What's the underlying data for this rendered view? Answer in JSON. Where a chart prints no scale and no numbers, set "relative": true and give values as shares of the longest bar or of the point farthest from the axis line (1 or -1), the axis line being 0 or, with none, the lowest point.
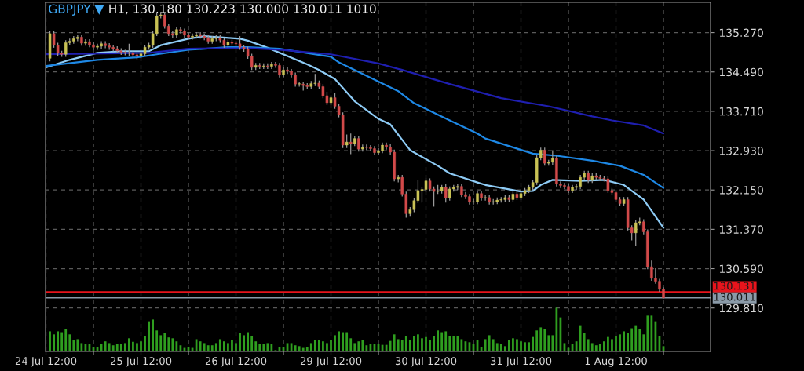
{
  "chart_data": [
    {
      "type": "candlestick",
      "title": "GBPJPY ▼",
      "subtitle": "H1, 130.180 130.223 130.000 130.011 1010",
      "categories": [
        "24 Jul 12:00",
        null,
        null,
        null,
        null,
        null,
        null,
        null,
        null,
        null,
        null,
        null,
        null,
        null,
        null,
        null,
        null,
        null,
        null,
        null,
        null,
        null,
        null,
        null,
        "25 Jul 12:00",
        null,
        null,
        null,
        null,
        null,
        null,
        null,
        null,
        null,
        null,
        null,
        null,
        null,
        null,
        null,
        null,
        null,
        null,
        null,
        null,
        null,
        null,
        null,
        "26 Jul 12:00",
        null,
        null,
        null,
        null,
        null,
        null,
        null,
        null,
        null,
        null,
        null,
        null,
        null,
        null,
        null,
        null,
        null,
        null,
        null,
        null,
        null,
        null,
        null,
        "29 Jul 12:00",
        null,
        null,
        null,
        null,
        null,
        null,
        null,
        null,
        null,
        null,
        null,
        null,
        null,
        null,
        null,
        null,
        null,
        null,
        null,
        null,
        null,
        null,
        null,
        "30 Jul 12:00",
        null,
        null,
        null,
        null,
        null,
        null,
        null,
        null,
        null,
        null,
        null,
        null,
        null,
        null,
        null,
        null,
        null,
        null,
        null,
        null,
        null,
        null,
        null,
        "31 Jul 12:00",
        null,
        null,
        null,
        null,
        null,
        null,
        null,
        null,
        null,
        null,
        null,
        null,
        null,
        null,
        null,
        null,
        null,
        null,
        null,
        null,
        null,
        null,
        null,
        "1 Aug 12:00",
        null,
        null,
        null,
        null,
        null,
        null,
        null,
        null,
        null,
        null,
        null,
        null
      ],
      "ohlc": [
        null,
        [
          134.76,
          135.3,
          134.7,
          135.25
        ],
        [
          135.25,
          135.3,
          134.97,
          135.02
        ],
        [
          135.02,
          135.07,
          134.81,
          134.86
        ],
        [
          134.86,
          134.91,
          134.79,
          134.84
        ],
        [
          134.84,
          135.12,
          134.79,
          135.07
        ],
        [
          135.07,
          135.15,
          135.02,
          135.1
        ],
        [
          135.1,
          135.2,
          135.05,
          135.15
        ],
        [
          135.15,
          135.23,
          135.1,
          135.18
        ],
        [
          135.18,
          135.23,
          135.01,
          135.06
        ],
        [
          135.06,
          135.14,
          135.01,
          135.09
        ],
        [
          135.09,
          135.14,
          134.98,
          135.03
        ],
        [
          135.03,
          135.08,
          134.93,
          134.98
        ],
        [
          134.98,
          135.05,
          134.93,
          135.0
        ],
        [
          135.0,
          135.1,
          134.95,
          135.05
        ],
        [
          135.05,
          135.1,
          134.96,
          135.01
        ],
        [
          135.01,
          135.06,
          134.93,
          134.98
        ],
        [
          134.98,
          135.03,
          134.9,
          134.95
        ],
        [
          134.95,
          135.0,
          134.86,
          134.91
        ],
        [
          134.91,
          134.96,
          134.83,
          134.88
        ],
        [
          134.88,
          134.93,
          134.82,
          134.87
        ],
        [
          134.87,
          135.05,
          134.81,
          134.86
        ],
        [
          134.86,
          134.91,
          134.78,
          134.83
        ],
        [
          134.83,
          134.88,
          134.74,
          134.81
        ],
        [
          134.81,
          134.9,
          134.76,
          134.85
        ],
        [
          134.85,
          135.03,
          134.8,
          134.98
        ],
        [
          134.98,
          135.07,
          134.93,
          135.02
        ],
        [
          135.02,
          135.3,
          134.97,
          135.25
        ],
        [
          135.25,
          135.66,
          135.2,
          135.6
        ],
        [
          135.6,
          135.68,
          135.55,
          135.62
        ],
        [
          135.62,
          135.67,
          135.35,
          135.4
        ],
        [
          135.4,
          135.45,
          135.2,
          135.25
        ],
        [
          135.25,
          135.3,
          135.17,
          135.22
        ],
        [
          135.22,
          135.38,
          135.17,
          135.33
        ],
        [
          135.33,
          135.38,
          135.25,
          135.3
        ],
        [
          135.3,
          135.35,
          135.17,
          135.22
        ],
        [
          135.22,
          135.27,
          135.13,
          135.18
        ],
        [
          135.18,
          135.25,
          135.13,
          135.2
        ],
        [
          135.2,
          135.28,
          135.15,
          135.23
        ],
        [
          135.23,
          135.28,
          135.15,
          135.2
        ],
        [
          135.2,
          135.25,
          135.12,
          135.17
        ],
        [
          135.17,
          135.22,
          135.05,
          135.1
        ],
        [
          135.1,
          135.2,
          135.05,
          135.15
        ],
        [
          135.15,
          135.22,
          135.1,
          135.17
        ],
        [
          135.17,
          135.22,
          135.07,
          135.12
        ],
        [
          135.12,
          135.17,
          134.97,
          135.02
        ],
        [
          135.02,
          135.13,
          134.97,
          135.08
        ],
        [
          135.08,
          135.13,
          135.01,
          135.06
        ],
        [
          135.06,
          135.11,
          135.0,
          135.05
        ],
        [
          135.05,
          135.2,
          134.93,
          134.98
        ],
        [
          134.98,
          135.03,
          134.89,
          134.94
        ],
        [
          134.94,
          134.99,
          134.75,
          134.8
        ],
        [
          134.8,
          134.85,
          134.53,
          134.58
        ],
        [
          134.58,
          134.67,
          134.53,
          134.62
        ],
        [
          134.62,
          134.67,
          134.55,
          134.6
        ],
        [
          134.6,
          134.66,
          134.55,
          134.61
        ],
        [
          134.61,
          134.66,
          134.55,
          134.6
        ],
        [
          134.6,
          134.69,
          134.55,
          134.64
        ],
        [
          134.64,
          134.69,
          134.57,
          134.62
        ],
        [
          134.62,
          134.67,
          134.38,
          134.43
        ],
        [
          134.43,
          134.58,
          134.38,
          134.53
        ],
        [
          134.53,
          134.58,
          134.45,
          134.5
        ],
        [
          134.5,
          134.55,
          134.38,
          134.43
        ],
        [
          134.43,
          134.48,
          134.2,
          134.25
        ],
        [
          134.25,
          134.3,
          134.2,
          134.25
        ],
        [
          134.25,
          134.3,
          134.12,
          134.22
        ],
        [
          134.22,
          134.27,
          134.15,
          134.2
        ],
        [
          134.2,
          134.31,
          134.15,
          134.26
        ],
        [
          134.26,
          134.45,
          134.21,
          134.27
        ],
        [
          134.27,
          134.32,
          134.15,
          134.2
        ],
        [
          134.2,
          134.25,
          133.97,
          134.02
        ],
        [
          134.02,
          134.1,
          133.83,
          133.88
        ],
        [
          133.88,
          134.03,
          133.83,
          133.98
        ],
        [
          133.98,
          134.08,
          133.76,
          133.81
        ],
        [
          133.81,
          133.86,
          133.59,
          133.64
        ],
        [
          133.64,
          133.69,
          132.98,
          133.04
        ],
        [
          133.04,
          133.25,
          132.98,
          133.1
        ],
        [
          133.1,
          133.27,
          132.86,
          133.07
        ],
        [
          133.07,
          133.22,
          133.02,
          133.17
        ],
        [
          133.17,
          133.22,
          132.91,
          132.96
        ],
        [
          132.96,
          133.05,
          132.91,
          133.0
        ],
        [
          133.0,
          133.05,
          132.94,
          132.99
        ],
        [
          132.99,
          133.04,
          132.92,
          132.97
        ],
        [
          132.97,
          133.02,
          132.84,
          132.89
        ],
        [
          132.89,
          132.98,
          132.84,
          132.93
        ],
        [
          132.93,
          133.09,
          132.88,
          133.04
        ],
        [
          133.04,
          133.09,
          132.95,
          133.0
        ],
        [
          133.0,
          133.07,
          132.85,
          132.9
        ],
        [
          132.9,
          132.95,
          132.32,
          132.37
        ],
        [
          132.37,
          132.45,
          132.3,
          132.4
        ],
        [
          132.4,
          132.45,
          132.02,
          132.07
        ],
        [
          132.07,
          132.12,
          131.6,
          131.68
        ],
        [
          131.68,
          131.81,
          131.62,
          131.76
        ],
        [
          131.76,
          131.99,
          131.71,
          131.94
        ],
        [
          131.94,
          132.35,
          131.89,
          132.14
        ],
        [
          132.14,
          132.21,
          131.9,
          132.16
        ],
        [
          132.16,
          132.38,
          132.11,
          132.33
        ],
        [
          132.33,
          132.38,
          132.12,
          132.17
        ],
        [
          132.17,
          132.22,
          131.82,
          132.12
        ],
        [
          132.12,
          132.25,
          132.07,
          132.13
        ],
        [
          132.13,
          132.25,
          132.08,
          132.2
        ],
        [
          132.2,
          132.27,
          131.9,
          131.99
        ],
        [
          131.99,
          132.22,
          131.94,
          132.17
        ],
        [
          132.17,
          132.25,
          132.12,
          132.2
        ],
        [
          132.2,
          132.27,
          132.15,
          132.22
        ],
        [
          132.22,
          132.27,
          132.01,
          132.06
        ],
        [
          132.06,
          132.11,
          131.97,
          132.02
        ],
        [
          132.02,
          132.07,
          131.86,
          131.91
        ],
        [
          131.91,
          131.97,
          131.86,
          131.92
        ],
        [
          131.92,
          132.13,
          131.87,
          132.08
        ],
        [
          132.08,
          132.13,
          131.94,
          131.99
        ],
        [
          131.99,
          132.05,
          131.94,
          132.0
        ],
        [
          132.0,
          132.05,
          131.86,
          131.91
        ],
        [
          131.91,
          131.97,
          131.86,
          131.92
        ],
        [
          131.92,
          132.0,
          131.87,
          131.95
        ],
        [
          131.95,
          132.01,
          131.9,
          131.96
        ],
        [
          131.96,
          132.05,
          131.91,
          132.0
        ],
        [
          132.0,
          132.05,
          131.91,
          131.96
        ],
        [
          131.96,
          132.12,
          131.91,
          132.07
        ],
        [
          132.07,
          132.12,
          131.95,
          132.0
        ],
        [
          132.0,
          132.13,
          131.95,
          132.08
        ],
        [
          132.08,
          132.19,
          132.03,
          132.14
        ],
        [
          132.14,
          132.25,
          132.09,
          132.2
        ],
        [
          132.2,
          132.35,
          132.15,
          132.3
        ],
        [
          132.3,
          132.84,
          132.25,
          132.79
        ],
        [
          132.79,
          132.99,
          132.74,
          132.94
        ],
        [
          132.94,
          132.99,
          132.63,
          132.68
        ],
        [
          132.68,
          132.75,
          132.63,
          132.7
        ],
        [
          132.7,
          132.94,
          132.65,
          132.78
        ],
        [
          132.78,
          132.83,
          132.22,
          132.27
        ],
        [
          132.27,
          132.32,
          132.19,
          132.24
        ],
        [
          132.24,
          132.29,
          132.17,
          132.22
        ],
        [
          132.22,
          132.27,
          132.09,
          132.14
        ],
        [
          132.14,
          132.25,
          132.09,
          132.2
        ],
        [
          132.2,
          132.27,
          132.15,
          132.22
        ],
        [
          132.22,
          132.45,
          132.17,
          132.4
        ],
        [
          132.4,
          132.53,
          132.35,
          132.48
        ],
        [
          132.48,
          132.53,
          132.29,
          132.34
        ],
        [
          132.34,
          132.48,
          132.29,
          132.43
        ],
        [
          132.43,
          132.48,
          132.35,
          132.4
        ],
        [
          132.4,
          132.45,
          132.33,
          132.38
        ],
        [
          132.38,
          132.43,
          132.32,
          132.37
        ],
        [
          132.37,
          132.42,
          132.09,
          132.14
        ],
        [
          132.14,
          132.19,
          132.05,
          132.1
        ],
        [
          132.1,
          132.15,
          131.91,
          131.96
        ],
        [
          131.96,
          132.01,
          131.83,
          131.88
        ],
        [
          131.88,
          132.01,
          131.83,
          131.96
        ],
        [
          131.96,
          132.01,
          131.35,
          131.4
        ],
        [
          131.4,
          131.45,
          131.15,
          131.3
        ],
        [
          131.3,
          131.55,
          131.05,
          131.5
        ],
        [
          131.5,
          131.6,
          131.45,
          131.52
        ],
        [
          131.52,
          131.57,
          131.27,
          131.32
        ],
        [
          131.32,
          131.37,
          130.58,
          130.63
        ],
        [
          130.63,
          130.75,
          130.35,
          130.4
        ],
        [
          130.4,
          130.6,
          130.29,
          130.34
        ],
        [
          130.34,
          130.39,
          130.13,
          130.18
        ],
        [
          130.18,
          130.223,
          130.0,
          130.011
        ]
      ],
      "colors": [
        null,
        "#c9c255",
        "#d24a4a",
        "#d24a4a",
        "#d24a4a",
        "#c9c255",
        "#c9c255",
        "#c9c255",
        "#c9c255",
        "#d24a4a",
        "#c9c255",
        "#d24a4a",
        "#d24a4a",
        "#c9c255",
        "#c9c255",
        "#d24a4a",
        "#d24a4a",
        "#d24a4a",
        "#d24a4a",
        "#d24a4a",
        "#d24a4a",
        "#d24a4a",
        "#d24a4a",
        "#d24a4a",
        "#c9c255",
        "#c9c255",
        "#c9c255",
        "#c9c255",
        "#c9c255",
        "#c9c255",
        "#d24a4a",
        "#d24a4a",
        "#d24a4a",
        "#c9c255",
        "#d24a4a",
        "#d24a4a",
        "#d24a4a",
        "#c9c255",
        "#c9c255",
        "#d24a4a",
        "#d24a4a",
        "#d24a4a",
        "#c9c255",
        "#c9c255",
        "#d24a4a",
        "#d24a4a",
        "#c9c255",
        "#d24a4a",
        "#d24a4a",
        "#d24a4a",
        "#d24a4a",
        "#d24a4a",
        "#d24a4a",
        "#c9c255",
        "#d24a4a",
        "#c9c255",
        "#d24a4a",
        "#c9c255",
        "#d24a4a",
        "#d24a4a",
        "#c9c255",
        "#d24a4a",
        "#d24a4a",
        "#d24a4a",
        "#c9c255",
        "#d24a4a",
        "#d24a4a",
        "#c9c255",
        "#c9c255",
        "#d24a4a",
        "#d24a4a",
        "#d24a4a",
        "#c9c255",
        "#d24a4a",
        "#d24a4a",
        "#d24a4a",
        "#c9c255",
        "#d24a4a",
        "#c9c255",
        "#d24a4a",
        "#c9c255",
        "#d24a4a",
        "#d24a4a",
        "#d24a4a",
        "#c9c255",
        "#c9c255",
        "#d24a4a",
        "#d24a4a",
        "#d24a4a",
        "#c9c255",
        "#d24a4a",
        "#d24a4a",
        "#c9c255",
        "#c9c255",
        "#c9c255",
        "#c9c255",
        "#c9c255",
        "#d24a4a",
        "#d24a4a",
        "#c9c255",
        "#c9c255",
        "#d24a4a",
        "#c9c255",
        "#c9c255",
        "#c9c255",
        "#d24a4a",
        "#d24a4a",
        "#d24a4a",
        "#c9c255",
        "#c9c255",
        "#d24a4a",
        "#c9c255",
        "#d24a4a",
        "#c9c255",
        "#c9c255",
        "#c9c255",
        "#c9c255",
        "#d24a4a",
        "#c9c255",
        "#d24a4a",
        "#c9c255",
        "#c9c255",
        "#c9c255",
        "#c9c255",
        "#c9c255",
        "#c9c255",
        "#d24a4a",
        "#c9c255",
        "#c9c255",
        "#d24a4a",
        "#d24a4a",
        "#d24a4a",
        "#d24a4a",
        "#c9c255",
        "#c9c255",
        "#c9c255",
        "#c9c255",
        "#d24a4a",
        "#c9c255",
        "#d24a4a",
        "#d24a4a",
        "#d24a4a",
        "#d24a4a",
        "#d24a4a",
        "#d24a4a",
        "#d24a4a",
        "#c9c255",
        "#d24a4a",
        "#d24a4a",
        "#c9c255",
        "#c9c255",
        "#d24a4a",
        "#d24a4a",
        "#d24a4a",
        "#d24a4a",
        "#d24a4a",
        "#d24a4a"
      ],
      "series": [
        {
          "type": "line",
          "color": "#8ecbf5",
          "values": [
            134.58,
            null,
            null,
            null,
            null,
            null,
            134.73,
            null,
            null,
            null,
            null,
            null,
            null,
            134.87,
            null,
            null,
            null,
            null,
            null,
            134.9,
            null,
            null,
            null,
            null,
            null,
            null,
            134.9,
            null,
            null,
            135.02,
            null,
            null,
            null,
            null,
            null,
            null,
            135.15,
            null,
            null,
            null,
            135.2,
            null,
            null,
            null,
            null,
            null,
            null,
            null,
            null,
            135.15,
            null,
            135.11,
            null,
            null,
            null,
            null,
            134.97,
            null,
            null,
            null,
            null,
            null,
            null,
            null,
            null,
            null,
            134.64,
            null,
            null,
            134.53,
            null,
            null,
            null,
            134.35,
            null,
            null,
            null,
            null,
            133.91,
            null,
            null,
            null,
            null,
            null,
            133.56,
            null,
            null,
            133.45,
            null,
            null,
            null,
            null,
            132.94,
            null,
            null,
            null,
            null,
            null,
            null,
            132.63,
            null,
            null,
            132.48,
            null,
            null,
            null,
            null,
            null,
            null,
            132.3,
            null,
            132.25,
            null,
            null,
            null,
            null,
            null,
            null,
            null,
            null,
            132.12,
            null,
            null,
            132.13,
            null,
            132.25,
            null,
            null,
            132.35,
            null,
            null,
            null,
            null,
            null,
            null,
            132.33,
            null,
            null,
            null,
            null,
            null,
            132.35,
            null,
            null,
            null,
            null,
            132.25,
            null,
            null,
            null,
            null,
            131.96,
            null,
            null,
            null,
            null,
            131.4
          ]
        },
        {
          "type": "line",
          "color": "#1e88e5",
          "values": [
            134.61,
            null,
            null,
            null,
            null,
            null,
            null,
            null,
            null,
            null,
            null,
            null,
            null,
            134.73,
            null,
            null,
            null,
            null,
            null,
            null,
            null,
            null,
            null,
            134.78,
            null,
            null,
            null,
            null,
            134.84,
            null,
            null,
            null,
            null,
            null,
            null,
            null,
            134.93,
            null,
            null,
            null,
            null,
            null,
            null,
            null,
            null,
            null,
            134.98,
            null,
            null,
            null,
            null,
            134.98,
            null,
            null,
            null,
            null,
            null,
            null,
            null,
            134.95,
            null,
            null,
            null,
            null,
            null,
            null,
            null,
            null,
            null,
            null,
            null,
            null,
            134.79,
            null,
            134.68,
            null,
            null,
            null,
            null,
            null,
            null,
            null,
            null,
            null,
            134.3,
            null,
            null,
            null,
            null,
            134.11,
            null,
            null,
            null,
            133.87,
            null,
            null,
            null,
            null,
            null,
            null,
            null,
            null,
            133.53,
            null,
            null,
            null,
            null,
            null,
            null,
            133.27,
            null,
            133.17,
            null,
            null,
            null,
            null,
            null,
            null,
            null,
            null,
            null,
            null,
            null,
            132.87,
            null,
            null,
            null,
            null,
            null,
            132.83,
            null,
            null,
            null,
            null,
            null,
            null,
            null,
            null,
            132.73,
            null,
            null,
            null,
            null,
            null,
            null,
            132.63,
            null,
            null,
            null,
            null,
            null,
            132.45,
            null,
            null,
            null,
            null,
            132.19
          ]
        },
        {
          "type": "line",
          "color": "#1f1fb0",
          "values": [
            134.84,
            null,
            null,
            null,
            null,
            null,
            null,
            null,
            null,
            null,
            null,
            null,
            null,
            null,
            null,
            null,
            null,
            null,
            null,
            null,
            null,
            null,
            null,
            null,
            null,
            null,
            134.87,
            null,
            null,
            null,
            null,
            null,
            null,
            null,
            null,
            null,
            134.95,
            null,
            null,
            null,
            null,
            null,
            null,
            null,
            null,
            null,
            134.96,
            null,
            null,
            null,
            null,
            null,
            134.96,
            null,
            null,
            null,
            null,
            null,
            null,
            134.93,
            null,
            null,
            null,
            null,
            null,
            null,
            null,
            null,
            null,
            null,
            null,
            null,
            134.84,
            null,
            null,
            null,
            null,
            null,
            null,
            null,
            null,
            null,
            null,
            null,
            134.66,
            null,
            null,
            null,
            null,
            null,
            134.53,
            null,
            null,
            null,
            null,
            null,
            null,
            null,
            null,
            null,
            null,
            null,
            134.25,
            null,
            null,
            null,
            null,
            null,
            null,
            null,
            null,
            null,
            null,
            null,
            null,
            133.97,
            null,
            null,
            null,
            null,
            null,
            null,
            null,
            null,
            null,
            null,
            null,
            133.81,
            null,
            null,
            null,
            null,
            null,
            null,
            null,
            null,
            null,
            null,
            133.61,
            null,
            null,
            null,
            null,
            133.53,
            null,
            null,
            null,
            null,
            null,
            null,
            null,
            133.43,
            null,
            null,
            null,
            null,
            133.27
          ]
        }
      ],
      "ref_lines": [
        {
          "axis": "y",
          "value": 130.131,
          "label": "130.131",
          "color": "#e8141c"
        },
        {
          "axis": "y",
          "value": 130.011,
          "label": "130.011",
          "color": "#8a9aa8"
        }
      ],
      "ylim": [
        128.95,
        135.87
      ],
      "yticks": [
        {
          "value": 129.81,
          "label": "129.810"
        },
        {
          "value": 130.59,
          "label": "130.590"
        },
        {
          "value": 131.37,
          "label": "131.370"
        },
        {
          "value": 132.15,
          "label": "132.150"
        },
        {
          "value": 132.93,
          "label": "132.930"
        },
        {
          "value": 133.71,
          "label": "133.710"
        },
        {
          "value": 134.49,
          "label": "134.490"
        },
        {
          "value": 135.27,
          "label": "135.270"
        }
      ],
      "grid": true
    },
    {
      "type": "bar",
      "relative": true,
      "color": "#2f9e1f",
      "tick_labels": false,
      "categories": [
        null,
        null,
        null,
        null,
        null,
        null,
        null,
        null,
        null,
        null,
        null,
        null,
        null,
        null,
        null,
        null,
        null,
        null,
        null,
        null,
        null,
        null,
        null,
        null,
        null,
        null,
        null,
        null,
        null,
        null,
        null,
        null,
        null,
        null,
        null,
        null,
        null,
        null,
        null,
        null,
        null,
        null,
        null,
        null,
        null,
        null,
        null,
        null,
        null,
        null,
        null,
        null,
        null,
        null,
        null,
        null,
        null,
        null,
        null,
        null,
        null,
        null,
        null,
        null,
        null,
        null,
        null,
        null,
        null,
        null,
        null,
        null,
        null,
        null,
        null,
        null,
        null,
        null,
        null,
        null,
        null,
        null,
        null,
        null,
        null,
        null,
        null,
        null,
        null,
        null,
        null,
        null,
        null,
        null,
        null,
        null,
        null,
        null,
        null,
        null,
        null,
        null,
        null,
        null,
        null,
        null,
        null,
        null,
        null,
        null,
        null,
        null,
        null,
        null,
        null,
        null,
        null,
        null,
        null,
        null,
        null,
        null,
        null,
        null,
        null,
        null,
        null,
        null,
        null,
        null,
        null,
        null,
        null,
        null,
        null,
        null,
        null,
        null,
        null,
        null,
        null,
        null,
        null,
        null,
        null,
        null,
        null,
        null,
        null,
        null,
        null,
        null,
        null,
        null,
        null,
        null,
        null
      ],
      "values": [
        null,
        0.46,
        0.39,
        0.46,
        0.44,
        0.51,
        0.39,
        0.26,
        0.28,
        0.19,
        0.17,
        0.17,
        0.1,
        0.1,
        0.17,
        0.23,
        0.19,
        0.14,
        0.17,
        0.17,
        0.19,
        0.3,
        0.22,
        0.19,
        0.23,
        0.35,
        0.69,
        0.73,
        0.48,
        0.37,
        0.42,
        0.32,
        0.3,
        0.23,
        0.14,
        0.08,
        0.1,
        0.08,
        0.28,
        0.23,
        0.19,
        0.14,
        0.14,
        0.19,
        0.28,
        0.23,
        0.19,
        0.26,
        0.19,
        0.42,
        0.37,
        0.44,
        0.35,
        0.23,
        0.17,
        0.17,
        0.19,
        0.17,
        0.03,
        0.1,
        0.1,
        0.19,
        0.19,
        0.14,
        0.12,
        0.08,
        0.1,
        0.19,
        0.26,
        0.26,
        0.23,
        0.19,
        0.26,
        0.37,
        0.46,
        0.44,
        0.44,
        0.3,
        0.19,
        0.23,
        0.26,
        0.14,
        0.17,
        0.17,
        0.17,
        0.15,
        0.15,
        0.24,
        0.39,
        0.28,
        0.26,
        0.35,
        0.26,
        0.35,
        0.39,
        0.3,
        0.33,
        0.26,
        0.35,
        0.48,
        0.44,
        0.46,
        0.35,
        0.35,
        0.35,
        0.28,
        0.23,
        0.21,
        0.17,
        0.26,
        0.1,
        0.28,
        0.37,
        0.28,
        0.19,
        0.17,
        0.12,
        0.26,
        0.3,
        0.28,
        0.23,
        0.21,
        0.21,
        0.33,
        0.48,
        0.55,
        0.51,
        0.37,
        0.37,
        1,
        0.78,
        0.19,
        0.08,
        0.17,
        0.23,
        0.6,
        0.42,
        0.28,
        0.19,
        0.14,
        0.17,
        0.23,
        0.33,
        0.28,
        0.35,
        0.39,
        0.46,
        0.42,
        0.53,
        0.6,
        0.51,
        0.39,
        0.82,
        0.82,
        0.69,
        0.35,
        0.12
      ]
    }
  ]
}
